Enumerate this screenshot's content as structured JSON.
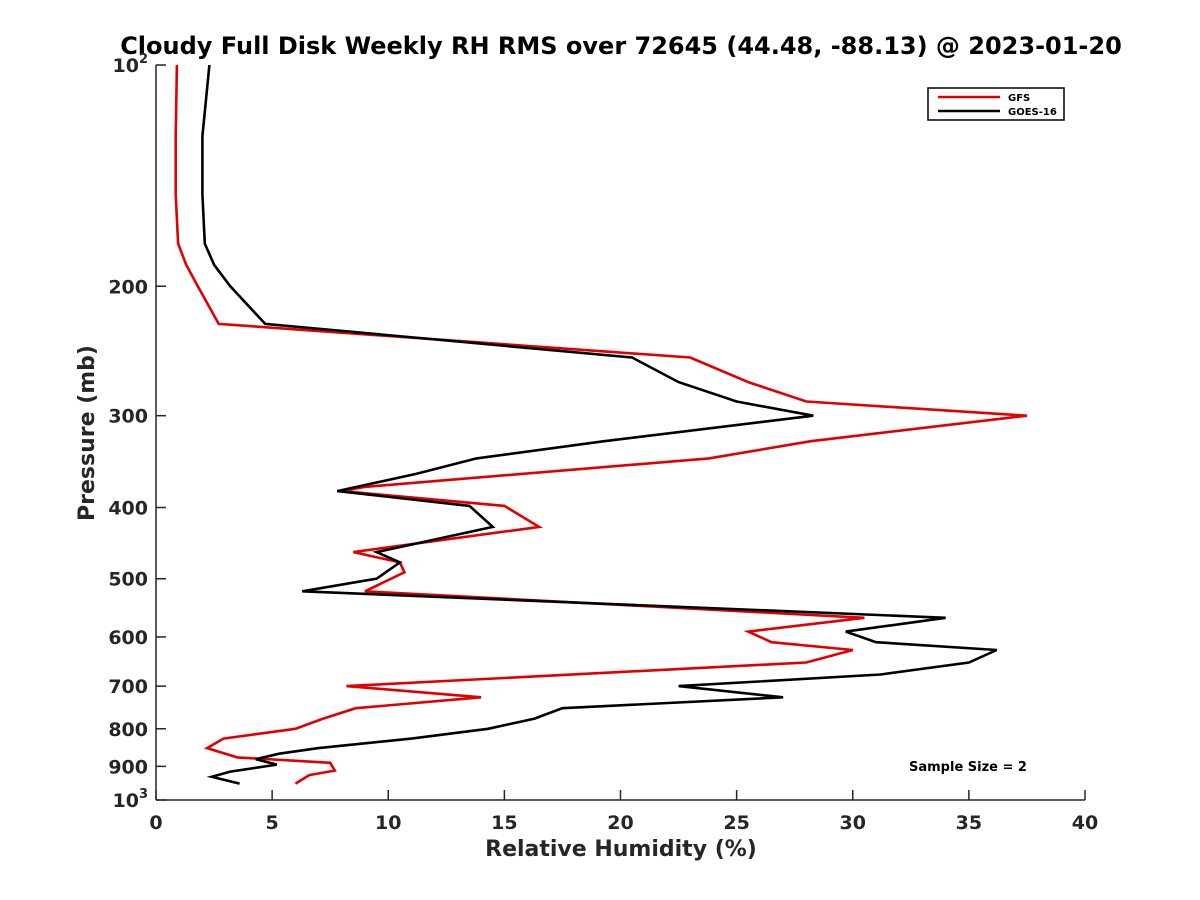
{
  "chart_data": {
    "type": "line",
    "title": "Cloudy Full Disk Weekly RH RMS over 72645 (44.48, -88.13) @ 2023-01-20",
    "xlabel": "Relative Humidity (%)",
    "ylabel": "Pressure (mb)",
    "xlim": [
      0,
      40
    ],
    "ylim": [
      100,
      1000
    ],
    "yscale": "log",
    "y_reversed": true,
    "xticks": [
      0,
      5,
      10,
      15,
      20,
      25,
      30,
      35,
      40
    ],
    "yticks": [
      {
        "value": 100,
        "base": "10",
        "exp": "2"
      },
      {
        "value": 200,
        "label": "200"
      },
      {
        "value": 300,
        "label": "300"
      },
      {
        "value": 400,
        "label": "400"
      },
      {
        "value": 500,
        "label": "500"
      },
      {
        "value": 600,
        "label": "600"
      },
      {
        "value": 700,
        "label": "700"
      },
      {
        "value": 800,
        "label": "800"
      },
      {
        "value": 900,
        "label": "900"
      },
      {
        "value": 1000,
        "base": "10",
        "exp": "3"
      }
    ],
    "grid": false,
    "legend_position": "top-right",
    "annotation": "Sample Size = 2",
    "series": [
      {
        "name": "GFS",
        "color": "#e00000",
        "points": [
          [
            0.9,
            100
          ],
          [
            0.85,
            125
          ],
          [
            0.85,
            150
          ],
          [
            0.95,
            175
          ],
          [
            1.3,
            187
          ],
          [
            1.8,
            200
          ],
          [
            2.7,
            225
          ],
          [
            23.0,
            250
          ],
          [
            25.5,
            270
          ],
          [
            28.0,
            287
          ],
          [
            37.5,
            300
          ],
          [
            28.2,
            325
          ],
          [
            23.8,
            343
          ],
          [
            9.0,
            375
          ],
          [
            8.0,
            380
          ],
          [
            15.0,
            398
          ],
          [
            16.5,
            425
          ],
          [
            8.5,
            460
          ],
          [
            10.5,
            475
          ],
          [
            10.7,
            490
          ],
          [
            9.0,
            520
          ],
          [
            30.5,
            565
          ],
          [
            25.5,
            590
          ],
          [
            26.5,
            610
          ],
          [
            30.0,
            625
          ],
          [
            28.0,
            650
          ],
          [
            8.2,
            700
          ],
          [
            14.0,
            725
          ],
          [
            8.6,
            750
          ],
          [
            7.2,
            775
          ],
          [
            6.0,
            800
          ],
          [
            2.9,
            825
          ],
          [
            2.2,
            850
          ],
          [
            3.5,
            875
          ],
          [
            7.5,
            890
          ],
          [
            7.7,
            912
          ],
          [
            6.6,
            925
          ],
          [
            6.0,
            950
          ]
        ]
      },
      {
        "name": "GOES-16",
        "color": "#000000",
        "points": [
          [
            2.3,
            100
          ],
          [
            2.0,
            125
          ],
          [
            2.0,
            150
          ],
          [
            2.1,
            175
          ],
          [
            2.5,
            187
          ],
          [
            3.2,
            200
          ],
          [
            4.7,
            225
          ],
          [
            20.5,
            250
          ],
          [
            22.5,
            270
          ],
          [
            25.0,
            287
          ],
          [
            28.3,
            300
          ],
          [
            19.3,
            325
          ],
          [
            13.8,
            343
          ],
          [
            11.2,
            360
          ],
          [
            7.8,
            380
          ],
          [
            13.5,
            398
          ],
          [
            14.5,
            425
          ],
          [
            9.5,
            460
          ],
          [
            10.5,
            475
          ],
          [
            9.5,
            500
          ],
          [
            6.3,
            520
          ],
          [
            34.0,
            565
          ],
          [
            29.7,
            590
          ],
          [
            31.0,
            610
          ],
          [
            36.2,
            625
          ],
          [
            35.0,
            650
          ],
          [
            31.2,
            675
          ],
          [
            22.5,
            700
          ],
          [
            27.0,
            725
          ],
          [
            17.5,
            750
          ],
          [
            16.3,
            775
          ],
          [
            14.3,
            800
          ],
          [
            11.0,
            825
          ],
          [
            7.0,
            850
          ],
          [
            5.3,
            865
          ],
          [
            4.3,
            880
          ],
          [
            5.2,
            895
          ],
          [
            3.2,
            915
          ],
          [
            2.4,
            930
          ],
          [
            3.6,
            950
          ]
        ]
      }
    ]
  }
}
